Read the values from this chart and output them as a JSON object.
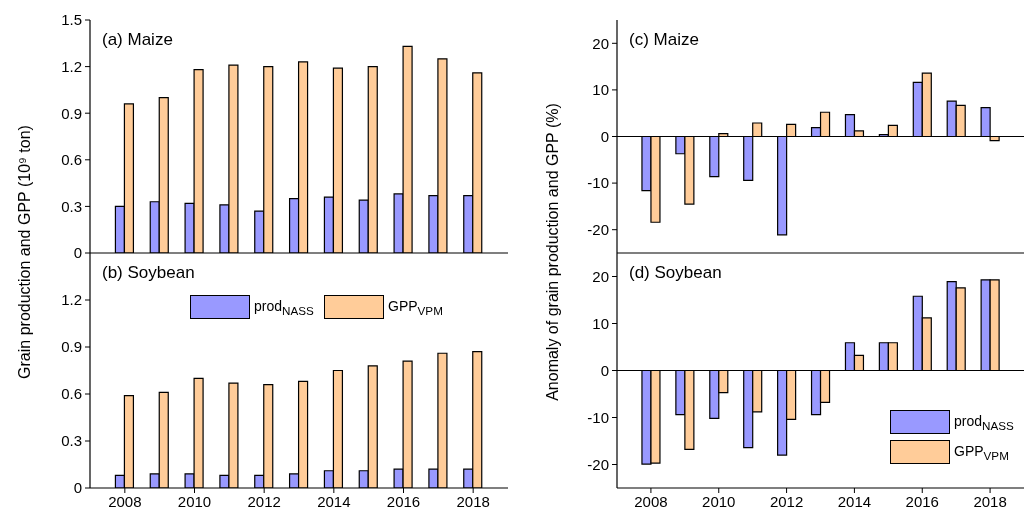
{
  "chart_data": [
    {
      "type": "bar",
      "title": "(a) Maize",
      "ylabel": "Grain production and GPP (10⁹ ton)",
      "x": [
        2008,
        2009,
        2010,
        2011,
        2012,
        2013,
        2014,
        2015,
        2016,
        2017,
        2018
      ],
      "xlim": [
        2007,
        2019
      ],
      "xticks": [
        2008,
        2010,
        2012,
        2014,
        2016,
        2018
      ],
      "ylim": [
        0,
        1.5
      ],
      "yticks": [
        0,
        0.3,
        0.6,
        0.9,
        1.2,
        1.5
      ],
      "tick_labels": "y",
      "legend": false,
      "grid": false,
      "series": [
        {
          "color": "#9999ff",
          "values": [
            0.3,
            0.33,
            0.32,
            0.31,
            0.27,
            0.35,
            0.36,
            0.34,
            0.38,
            0.37,
            0.37
          ]
        },
        {
          "color": "#ffcc99",
          "values": [
            0.96,
            1.0,
            1.18,
            1.21,
            1.2,
            1.23,
            1.19,
            1.2,
            1.33,
            1.25,
            1.16
          ]
        }
      ]
    },
    {
      "type": "bar",
      "title": "(b) Soybean",
      "x": [
        2008,
        2009,
        2010,
        2011,
        2012,
        2013,
        2014,
        2015,
        2016,
        2017,
        2018
      ],
      "xlim": [
        2007,
        2019
      ],
      "xticks": [
        2008,
        2010,
        2012,
        2014,
        2016,
        2018
      ],
      "ylim": [
        0,
        1.5
      ],
      "yticks": [
        0,
        0.3,
        0.6,
        0.9,
        1.2
      ],
      "legend": "top right",
      "grid": false,
      "series": [
        {
          "name": "prod$_{NASS}$",
          "color": "#9999ff",
          "values": [
            0.08,
            0.09,
            0.09,
            0.08,
            0.08,
            0.09,
            0.11,
            0.11,
            0.12,
            0.12,
            0.12
          ]
        },
        {
          "name": "GPP$_{VPM}$",
          "color": "#ffcc99",
          "values": [
            0.59,
            0.61,
            0.7,
            0.67,
            0.66,
            0.68,
            0.75,
            0.78,
            0.81,
            0.86,
            0.87
          ]
        }
      ]
    },
    {
      "type": "bar",
      "title": "(c) Maize",
      "ylabel": "Anomaly of grain production and GPP (%)",
      "x": [
        2008,
        2009,
        2010,
        2011,
        2012,
        2013,
        2014,
        2015,
        2016,
        2017,
        2018
      ],
      "xlim": [
        2007,
        2019
      ],
      "xticks": [
        2008,
        2010,
        2012,
        2014,
        2016,
        2018
      ],
      "ylim": [
        -25,
        25
      ],
      "yticks": [
        -20,
        -10,
        0,
        10,
        20
      ],
      "tick_labels": "y",
      "legend": false,
      "grid": false,
      "ref_lines": [
        {
          "axis": "y",
          "value": 0,
          "color": "#000000"
        }
      ],
      "series": [
        {
          "color": "#9999ff",
          "values": [
            -11.6,
            -3.7,
            -8.6,
            -9.4,
            -21.1,
            1.9,
            4.7,
            0.4,
            11.6,
            7.6,
            6.2
          ]
        },
        {
          "color": "#ffcc99",
          "values": [
            -18.4,
            -14.5,
            0.6,
            2.9,
            2.6,
            5.2,
            1.2,
            2.4,
            13.6,
            6.7,
            -0.9
          ]
        }
      ]
    },
    {
      "type": "bar",
      "title": "(d) Soybean",
      "x": [
        2008,
        2009,
        2010,
        2011,
        2012,
        2013,
        2014,
        2015,
        2016,
        2017,
        2018
      ],
      "xlim": [
        2007,
        2019
      ],
      "xticks": [
        2008,
        2010,
        2012,
        2014,
        2016,
        2018
      ],
      "ylim": [
        -25,
        25
      ],
      "yticks": [
        -20,
        -10,
        0,
        10,
        20
      ],
      "legend": "bottom right",
      "grid": false,
      "ref_lines": [
        {
          "axis": "y",
          "value": 0,
          "color": "#000000"
        }
      ],
      "series": [
        {
          "name": "prod$_{NASS}$",
          "color": "#9999ff",
          "values": [
            -19.9,
            -9.4,
            -10.2,
            -16.4,
            -18.0,
            -9.4,
            5.9,
            5.9,
            15.8,
            18.9,
            19.3
          ]
        },
        {
          "name": "GPP$_{VPM}$",
          "color": "#ffcc99",
          "values": [
            -19.7,
            -16.8,
            -4.7,
            -8.8,
            -10.4,
            -6.8,
            3.2,
            5.9,
            11.2,
            17.6,
            19.3
          ]
        }
      ]
    }
  ]
}
